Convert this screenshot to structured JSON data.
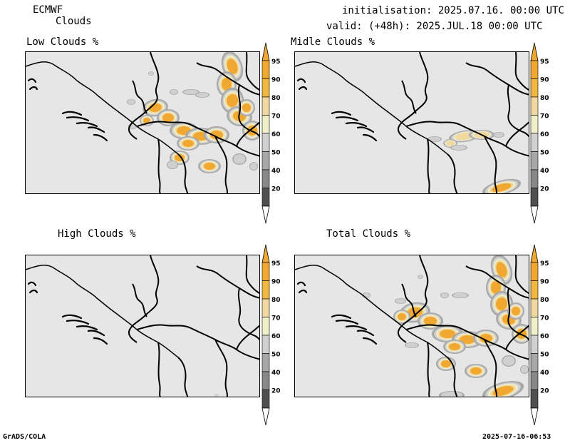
{
  "header": {
    "model": "ECMWF",
    "product": "Clouds",
    "init_text": "initialisation: 2025.07.16. 00:00 UTC",
    "valid_text": "valid: (+48h): 2025.JUL.18 00:00 UTC"
  },
  "panels": [
    {
      "title": "Low Clouds %"
    },
    {
      "title": "Midle Clouds %"
    },
    {
      "title": "High Clouds %"
    },
    {
      "title": "Total Clouds %"
    }
  ],
  "colorbar": {
    "levels": [
      "95",
      "90",
      "80",
      "70",
      "60",
      "50",
      "40",
      "20"
    ],
    "colors": {
      "c95": "#f0a830",
      "c90": "#f0b840",
      "c80": "#f0d8a0",
      "c70": "#f0f0c8",
      "c60": "#d0d0d0",
      "c50": "#a8a8a8",
      "c40": "#888888",
      "c20": "#505050",
      "low": "#ffffff"
    }
  },
  "footer": {
    "left": "GrADS/COLA",
    "right": "2025-07-16-06:53"
  }
}
